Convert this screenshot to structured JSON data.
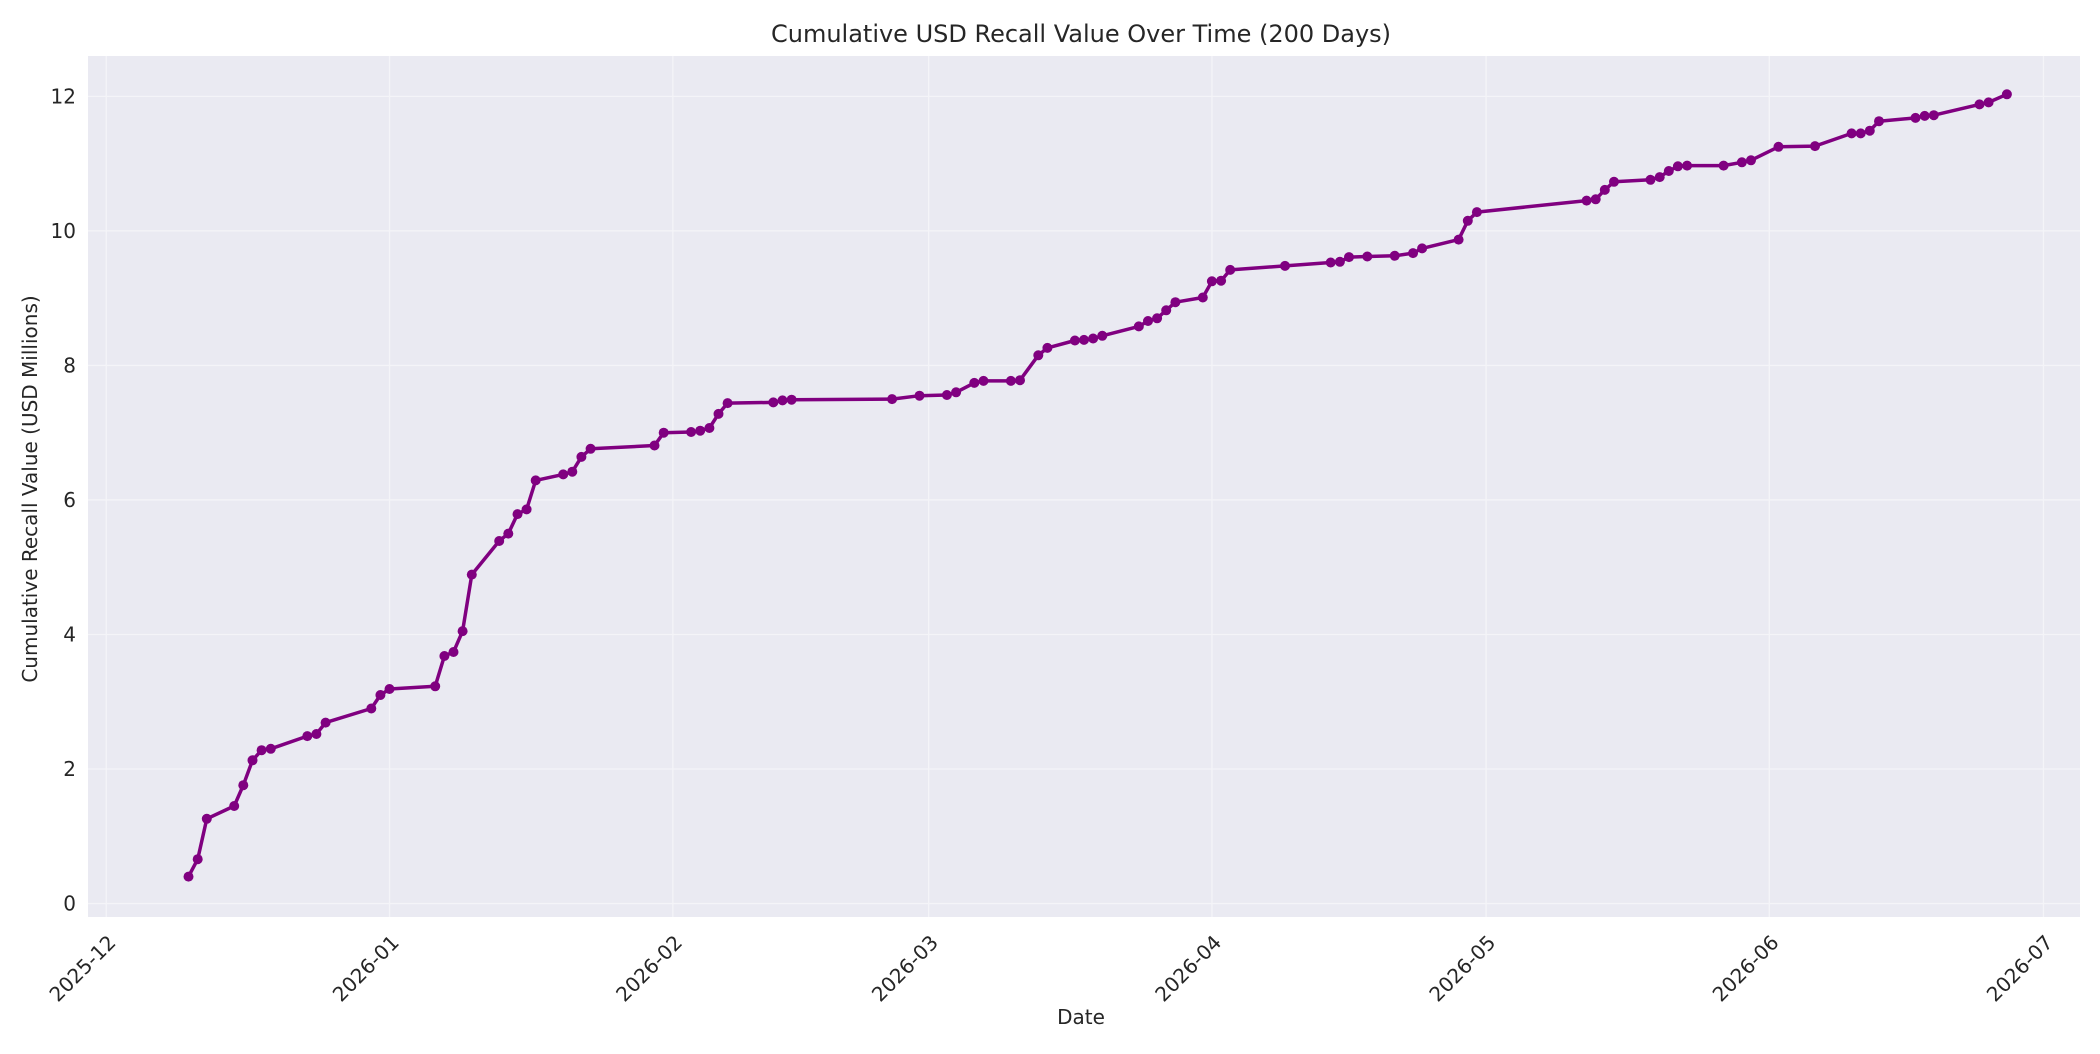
{
  "chart_data": {
    "type": "line",
    "title": "Cumulative USD Recall Value Over Time (200 Days)",
    "xlabel": "Date",
    "ylabel": "Cumulative Recall Value (USD Millions)",
    "xlim": [
      "2025-11-29",
      "2026-07-05"
    ],
    "ylim": [
      -0.2,
      12.6
    ],
    "x_ticks": [
      "2025-12-01",
      "2026-01-01",
      "2026-02-01",
      "2026-03-01",
      "2026-04-01",
      "2026-05-01",
      "2026-06-01",
      "2026-07-01"
    ],
    "x_tick_labels": [
      "2025-12",
      "2026-01",
      "2026-02",
      "2026-03",
      "2026-04",
      "2026-05",
      "2026-06",
      "2026-07"
    ],
    "y_ticks": [
      0,
      2,
      4,
      6,
      8,
      10,
      12
    ],
    "y_tick_labels": [
      "0",
      "2",
      "4",
      "6",
      "8",
      "10",
      "12"
    ],
    "grid": true,
    "line_color": "#800080",
    "plot_background": "#eaeaf2",
    "series": [
      {
        "points": [
          [
            "2025-12-10",
            0.4
          ],
          [
            "2025-12-11",
            0.66
          ],
          [
            "2025-12-12",
            1.26
          ],
          [
            "2025-12-15",
            1.45
          ],
          [
            "2025-12-16",
            1.76
          ],
          [
            "2025-12-17",
            2.13
          ],
          [
            "2025-12-18",
            2.28
          ],
          [
            "2025-12-19",
            2.3
          ],
          [
            "2025-12-23",
            2.49
          ],
          [
            "2025-12-24",
            2.52
          ],
          [
            "2025-12-25",
            2.69
          ],
          [
            "2025-12-30",
            2.9
          ],
          [
            "2025-12-31",
            3.1
          ],
          [
            "2026-01-01",
            3.19
          ],
          [
            "2026-01-06",
            3.23
          ],
          [
            "2026-01-07",
            3.68
          ],
          [
            "2026-01-08",
            3.74
          ],
          [
            "2026-01-09",
            4.05
          ],
          [
            "2026-01-10",
            4.89
          ],
          [
            "2026-01-13",
            5.39
          ],
          [
            "2026-01-14",
            5.5
          ],
          [
            "2026-01-15",
            5.79
          ],
          [
            "2026-01-16",
            5.86
          ],
          [
            "2026-01-17",
            6.29
          ],
          [
            "2026-01-20",
            6.38
          ],
          [
            "2026-01-21",
            6.42
          ],
          [
            "2026-01-22",
            6.64
          ],
          [
            "2026-01-23",
            6.76
          ],
          [
            "2026-01-30",
            6.81
          ],
          [
            "2026-01-31",
            7.0
          ],
          [
            "2026-02-03",
            7.01
          ],
          [
            "2026-02-04",
            7.03
          ],
          [
            "2026-02-05",
            7.07
          ],
          [
            "2026-02-06",
            7.28
          ],
          [
            "2026-02-07",
            7.44
          ],
          [
            "2026-02-12",
            7.45
          ],
          [
            "2026-02-13",
            7.48
          ],
          [
            "2026-02-14",
            7.49
          ],
          [
            "2026-02-25",
            7.5
          ],
          [
            "2026-02-28",
            7.55
          ],
          [
            "2026-03-03",
            7.56
          ],
          [
            "2026-03-04",
            7.6
          ],
          [
            "2026-03-06",
            7.74
          ],
          [
            "2026-03-07",
            7.77
          ],
          [
            "2026-03-10",
            7.77
          ],
          [
            "2026-03-11",
            7.78
          ],
          [
            "2026-03-13",
            8.15
          ],
          [
            "2026-03-14",
            8.26
          ],
          [
            "2026-03-17",
            8.37
          ],
          [
            "2026-03-18",
            8.38
          ],
          [
            "2026-03-19",
            8.4
          ],
          [
            "2026-03-20",
            8.44
          ],
          [
            "2026-03-24",
            8.58
          ],
          [
            "2026-03-25",
            8.66
          ],
          [
            "2026-03-26",
            8.7
          ],
          [
            "2026-03-27",
            8.82
          ],
          [
            "2026-03-28",
            8.94
          ],
          [
            "2026-03-31",
            9.01
          ],
          [
            "2026-04-01",
            9.25
          ],
          [
            "2026-04-02",
            9.26
          ],
          [
            "2026-04-03",
            9.42
          ],
          [
            "2026-04-09",
            9.48
          ],
          [
            "2026-04-14",
            9.53
          ],
          [
            "2026-04-15",
            9.54
          ],
          [
            "2026-04-16",
            9.61
          ],
          [
            "2026-04-18",
            9.62
          ],
          [
            "2026-04-21",
            9.63
          ],
          [
            "2026-04-23",
            9.67
          ],
          [
            "2026-04-24",
            9.74
          ],
          [
            "2026-04-28",
            9.87
          ],
          [
            "2026-04-29",
            10.15
          ],
          [
            "2026-04-30",
            10.28
          ],
          [
            "2026-05-12",
            10.45
          ],
          [
            "2026-05-13",
            10.47
          ],
          [
            "2026-05-14",
            10.61
          ],
          [
            "2026-05-15",
            10.73
          ],
          [
            "2026-05-19",
            10.76
          ],
          [
            "2026-05-20",
            10.8
          ],
          [
            "2026-05-21",
            10.89
          ],
          [
            "2026-05-22",
            10.96
          ],
          [
            "2026-05-23",
            10.97
          ],
          [
            "2026-05-27",
            10.97
          ],
          [
            "2026-05-29",
            11.02
          ],
          [
            "2026-05-30",
            11.05
          ],
          [
            "2026-06-02",
            11.25
          ],
          [
            "2026-06-06",
            11.26
          ],
          [
            "2026-06-10",
            11.45
          ],
          [
            "2026-06-11",
            11.45
          ],
          [
            "2026-06-12",
            11.49
          ],
          [
            "2026-06-13",
            11.63
          ],
          [
            "2026-06-17",
            11.68
          ],
          [
            "2026-06-18",
            11.71
          ],
          [
            "2026-06-19",
            11.72
          ],
          [
            "2026-06-24",
            11.88
          ],
          [
            "2026-06-25",
            11.91
          ],
          [
            "2026-06-27",
            12.03
          ]
        ]
      }
    ]
  }
}
